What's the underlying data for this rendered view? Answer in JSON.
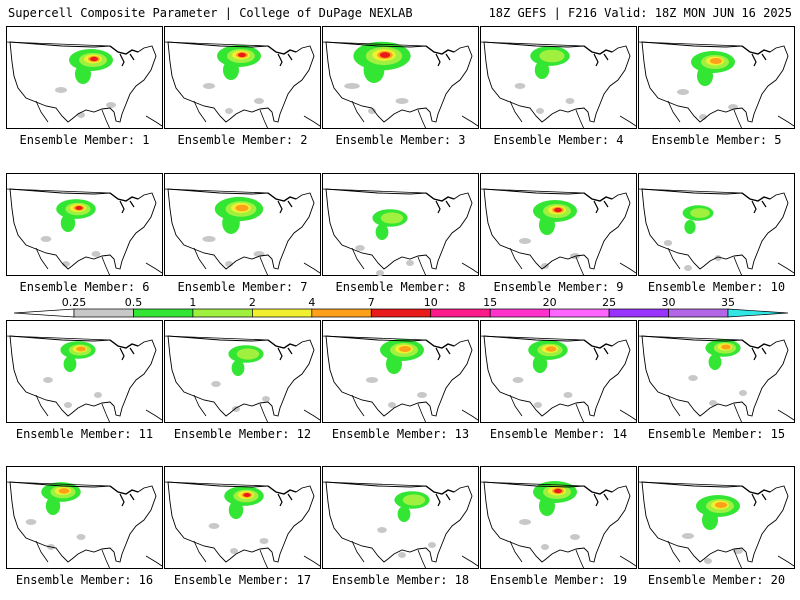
{
  "header": {
    "title_left": "Supercell Composite Parameter | College of DuPage NEXLAB",
    "title_right": "18Z GEFS | F216 Valid: 18Z MON JUN 16 2025"
  },
  "panels": [
    {
      "label": "Ensemble Member: 1"
    },
    {
      "label": "Ensemble Member: 2"
    },
    {
      "label": "Ensemble Member: 3"
    },
    {
      "label": "Ensemble Member: 4"
    },
    {
      "label": "Ensemble Member: 5"
    },
    {
      "label": "Ensemble Member: 6"
    },
    {
      "label": "Ensemble Member: 7"
    },
    {
      "label": "Ensemble Member: 8"
    },
    {
      "label": "Ensemble Member: 9"
    },
    {
      "label": "Ensemble Member: 10"
    },
    {
      "label": "Ensemble Member: 11"
    },
    {
      "label": "Ensemble Member: 12"
    },
    {
      "label": "Ensemble Member: 13"
    },
    {
      "label": "Ensemble Member: 14"
    },
    {
      "label": "Ensemble Member: 15"
    },
    {
      "label": "Ensemble Member: 16"
    },
    {
      "label": "Ensemble Member: 17"
    },
    {
      "label": "Ensemble Member: 18"
    },
    {
      "label": "Ensemble Member: 19"
    },
    {
      "label": "Ensemble Member: 20"
    }
  ],
  "colorbar": {
    "thresholds": [
      "0.25",
      "0.5",
      "1",
      "2",
      "4",
      "7",
      "10",
      "15",
      "20",
      "25",
      "30",
      "35"
    ],
    "colors": [
      "#c8c8c8",
      "#33e633",
      "#a0f040",
      "#f0f030",
      "#ff9f1a",
      "#e81a1a",
      "#ff1a8c",
      "#ff33cc",
      "#ff66ff",
      "#9933ff",
      "#b266e6",
      "#33e6e6"
    ],
    "under_color": "#ffffff",
    "over_color": "#33e6e6"
  }
}
